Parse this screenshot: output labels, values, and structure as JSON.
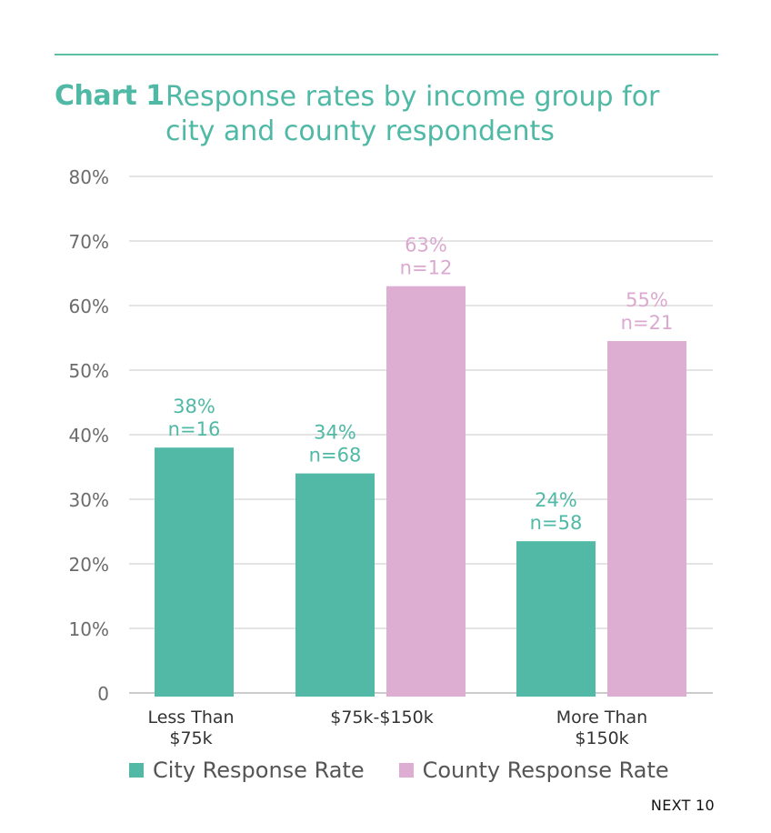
{
  "header": {
    "label": "Chart 1",
    "title": "Response rates by income group for city and county respondents"
  },
  "footer": {
    "brand": "NEXT 10"
  },
  "colors": {
    "city": "#52b9a6",
    "county": "#ddadd2",
    "accent": "#4fb9a5"
  },
  "chart_data": {
    "type": "bar",
    "title": "Response rates by income group for city and county respondents",
    "categories": [
      "Less Than $75k",
      "$75k-$150k",
      "More Than $150k"
    ],
    "ylim": [
      0,
      80
    ],
    "yticks": [
      "0",
      "10%",
      "20%",
      "30%",
      "40%",
      "50%",
      "60%",
      "70%",
      "80%"
    ],
    "ytick_values": [
      0,
      10,
      20,
      30,
      40,
      50,
      60,
      70,
      80
    ],
    "grid": true,
    "legend_position": "bottom",
    "series": [
      {
        "name": "City Response Rate",
        "values": [
          38,
          34,
          23.5
        ],
        "labels": [
          "38%",
          "34%",
          "24%"
        ],
        "n_labels": [
          "n=16",
          "n=68",
          "n=58"
        ]
      },
      {
        "name": "County Response Rate",
        "values": [
          null,
          63,
          54.5
        ],
        "labels": [
          "",
          "63%",
          "55%"
        ],
        "n_labels": [
          "",
          "n=12",
          "n=21"
        ]
      }
    ]
  }
}
